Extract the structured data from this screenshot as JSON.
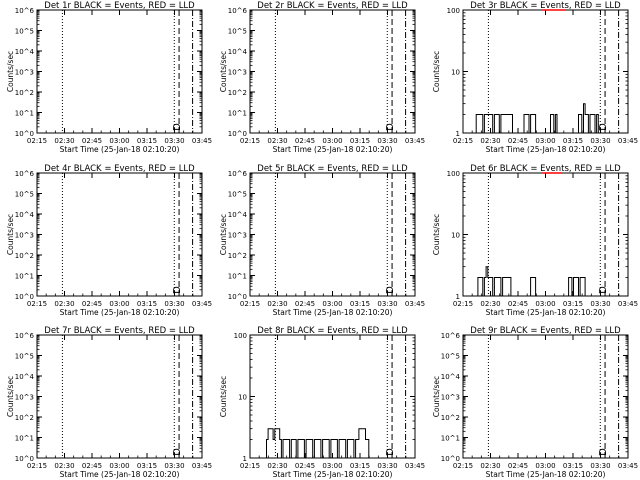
{
  "chart_data": [
    {
      "type": "line",
      "title": "Det 1r BLACK = Events, RED = LLD",
      "xlabel": "Start Time (25-Jan-18 02:10:20)",
      "ylabel": "Counts/sec",
      "xticks": [
        "02:15",
        "02:30",
        "02:45",
        "03:00",
        "03:15",
        "03:30",
        "03:45"
      ],
      "xlim": [
        0,
        100
      ],
      "scale": "log",
      "ylim": [
        1,
        1000000
      ],
      "yticks": [
        1,
        10,
        100,
        1000,
        10000,
        100000,
        1000000
      ],
      "ytick_labels": [
        "10^0",
        "10^1",
        "10^2",
        "10^3",
        "10^4",
        "10^5",
        "10^6"
      ],
      "vlines": [
        {
          "x": 15.4,
          "style": "dotted"
        },
        {
          "x": 83.2,
          "style": "dotted"
        },
        {
          "x": 86.1,
          "style": "dashed"
        },
        {
          "x": 94.3,
          "style": "dashdot"
        }
      ],
      "series": [
        {
          "color": "#000000",
          "values": []
        },
        {
          "color": "#ff0000",
          "values": []
        }
      ],
      "annotation": "D",
      "annotation_x": 86.1
    },
    {
      "type": "line",
      "title": "Det 2r BLACK = Events, RED = LLD",
      "xlabel": "Start Time (25-Jan-18 02:10:20)",
      "ylabel": "Counts/sec",
      "xticks": [
        "02:15",
        "02:30",
        "02:45",
        "03:00",
        "03:15",
        "03:30",
        "03:45"
      ],
      "xlim": [
        0,
        100
      ],
      "scale": "log",
      "ylim": [
        1,
        1000000
      ],
      "yticks": [
        1,
        10,
        100,
        1000,
        10000,
        100000,
        1000000
      ],
      "ytick_labels": [
        "10^0",
        "10^1",
        "10^2",
        "10^3",
        "10^4",
        "10^5",
        "10^6"
      ],
      "vlines": [
        {
          "x": 15.4,
          "style": "dotted"
        },
        {
          "x": 83.2,
          "style": "dotted"
        },
        {
          "x": 86.1,
          "style": "dashed"
        },
        {
          "x": 94.3,
          "style": "dashdot"
        }
      ],
      "series": [
        {
          "color": "#000000",
          "values": []
        },
        {
          "color": "#ff0000",
          "values": []
        }
      ],
      "annotation": "D",
      "annotation_x": 86.1
    },
    {
      "type": "line",
      "title": "Det 3r BLACK = Events, RED = LLD",
      "xlabel": "Start Time (25-Jan-18 02:10:20)",
      "ylabel": "Counts/sec",
      "xticks": [
        "02:15",
        "02:30",
        "02:45",
        "03:00",
        "03:15",
        "03:30",
        "03:45"
      ],
      "xlim": [
        0,
        100
      ],
      "scale": "log",
      "ylim": [
        1,
        100
      ],
      "yticks": [
        1,
        10,
        100
      ],
      "ytick_labels": [
        "1",
        "10",
        "100"
      ],
      "vlines": [
        {
          "x": 15.4,
          "style": "dotted"
        },
        {
          "x": 83.2,
          "style": "dotted"
        },
        {
          "x": 86.1,
          "style": "dashed"
        },
        {
          "x": 94.3,
          "style": "dashdot"
        }
      ],
      "series": [
        {
          "color": "#000000",
          "values": [
            [
              8,
              1
            ],
            [
              8,
              2
            ],
            [
              12,
              2
            ],
            [
              12,
              1
            ],
            [
              13,
              1
            ],
            [
              13,
              2
            ],
            [
              18,
              2
            ],
            [
              18,
              1
            ],
            [
              19,
              1
            ],
            [
              19,
              2
            ],
            [
              22,
              2
            ],
            [
              22,
              1
            ],
            [
              23,
              1
            ],
            [
              23,
              2
            ],
            [
              30,
              2
            ],
            [
              30,
              1
            ],
            [
              37,
              1
            ],
            [
              37,
              2
            ],
            [
              40,
              2
            ],
            [
              40,
              1
            ],
            [
              41,
              1
            ],
            [
              41,
              2
            ],
            [
              44,
              2
            ],
            [
              44,
              1
            ],
            [
              53,
              1
            ],
            [
              53,
              2
            ],
            [
              55,
              2
            ],
            [
              55,
              1
            ],
            [
              56,
              1
            ],
            [
              56,
              2
            ],
            [
              57,
              2
            ],
            [
              57,
              1
            ],
            [
              70,
              1
            ],
            [
              70,
              2
            ],
            [
              72,
              2
            ],
            [
              72,
              1
            ],
            [
              73,
              1
            ],
            [
              73,
              3
            ],
            [
              74,
              3
            ],
            [
              74,
              2
            ],
            [
              76,
              2
            ],
            [
              76,
              1
            ],
            [
              77,
              1
            ],
            [
              77,
              2
            ],
            [
              80,
              2
            ],
            [
              80,
              1
            ],
            [
              81,
              1
            ],
            [
              81,
              2
            ],
            [
              82,
              2
            ],
            [
              82,
              1
            ]
          ]
        },
        {
          "color": "#ff0000",
          "values": [
            [
              48,
              100
            ],
            [
              62,
              100
            ]
          ]
        }
      ],
      "annotation": "D",
      "annotation_x": 86.1
    },
    {
      "type": "line",
      "title": "Det 4r BLACK = Events, RED = LLD",
      "xlabel": "Start Time (25-Jan-18 02:10:20)",
      "ylabel": "Counts/sec",
      "xticks": [
        "02:15",
        "02:30",
        "02:45",
        "03:00",
        "03:15",
        "03:30",
        "03:45"
      ],
      "xlim": [
        0,
        100
      ],
      "scale": "log",
      "ylim": [
        1,
        1000000
      ],
      "yticks": [
        1,
        10,
        100,
        1000,
        10000,
        100000,
        1000000
      ],
      "ytick_labels": [
        "10^0",
        "10^1",
        "10^2",
        "10^3",
        "10^4",
        "10^5",
        "10^6"
      ],
      "vlines": [
        {
          "x": 15.4,
          "style": "dotted"
        },
        {
          "x": 83.2,
          "style": "dotted"
        },
        {
          "x": 86.1,
          "style": "dashed"
        },
        {
          "x": 94.3,
          "style": "dashdot"
        }
      ],
      "series": [
        {
          "color": "#000000",
          "values": []
        },
        {
          "color": "#ff0000",
          "values": []
        }
      ],
      "annotation": "D",
      "annotation_x": 86.1
    },
    {
      "type": "line",
      "title": "Det 5r BLACK = Events, RED = LLD",
      "xlabel": "Start Time (25-Jan-18 02:10:20)",
      "ylabel": "Counts/sec",
      "xticks": [
        "02:15",
        "02:30",
        "02:45",
        "03:00",
        "03:15",
        "03:30",
        "03:45"
      ],
      "xlim": [
        0,
        100
      ],
      "scale": "log",
      "ylim": [
        1,
        1000000
      ],
      "yticks": [
        1,
        10,
        100,
        1000,
        10000,
        100000,
        1000000
      ],
      "ytick_labels": [
        "10^0",
        "10^1",
        "10^2",
        "10^3",
        "10^4",
        "10^5",
        "10^6"
      ],
      "vlines": [
        {
          "x": 15.4,
          "style": "dotted"
        },
        {
          "x": 83.2,
          "style": "dotted"
        },
        {
          "x": 86.1,
          "style": "dashed"
        },
        {
          "x": 94.3,
          "style": "dashdot"
        }
      ],
      "series": [
        {
          "color": "#000000",
          "values": []
        },
        {
          "color": "#ff0000",
          "values": []
        }
      ],
      "annotation": "D",
      "annotation_x": 86.1
    },
    {
      "type": "line",
      "title": "Det 6r BLACK = Events, RED = LLD",
      "xlabel": "Start Time (25-Jan-18 02:10:20)",
      "ylabel": "Counts/sec",
      "xticks": [
        "02:15",
        "02:30",
        "02:45",
        "03:00",
        "03:15",
        "03:30",
        "03:45"
      ],
      "xlim": [
        0,
        100
      ],
      "scale": "log",
      "ylim": [
        1,
        100
      ],
      "yticks": [
        1,
        10,
        100
      ],
      "ytick_labels": [
        "1",
        "10",
        "100"
      ],
      "vlines": [
        {
          "x": 15.4,
          "style": "dotted"
        },
        {
          "x": 83.2,
          "style": "dotted"
        },
        {
          "x": 86.1,
          "style": "dashed"
        },
        {
          "x": 94.3,
          "style": "dashdot"
        }
      ],
      "series": [
        {
          "color": "#000000",
          "values": [
            [
              9,
              1
            ],
            [
              9,
              2
            ],
            [
              12,
              2
            ],
            [
              12,
              1
            ],
            [
              13,
              1
            ],
            [
              13,
              2
            ],
            [
              14,
              2
            ],
            [
              14,
              3
            ],
            [
              15,
              3
            ],
            [
              15,
              2
            ],
            [
              18,
              2
            ],
            [
              18,
              1
            ],
            [
              19,
              1
            ],
            [
              19,
              2
            ],
            [
              23,
              2
            ],
            [
              23,
              1
            ],
            [
              24,
              1
            ],
            [
              24,
              2
            ],
            [
              29,
              2
            ],
            [
              29,
              1
            ],
            [
              41,
              1
            ],
            [
              41,
              2
            ],
            [
              44,
              2
            ],
            [
              44,
              1
            ],
            [
              64,
              1
            ],
            [
              64,
              2
            ],
            [
              66,
              2
            ],
            [
              66,
              1
            ],
            [
              67,
              1
            ],
            [
              67,
              2
            ],
            [
              70,
              2
            ],
            [
              70,
              1
            ],
            [
              71,
              1
            ],
            [
              71,
              2
            ],
            [
              74,
              2
            ],
            [
              74,
              1
            ]
          ]
        },
        {
          "color": "#ff0000",
          "values": [
            [
              48,
              100
            ],
            [
              60,
              100
            ]
          ]
        }
      ],
      "annotation": "D",
      "annotation_x": 86.1
    },
    {
      "type": "line",
      "title": "Det 7r BLACK = Events, RED = LLD",
      "xlabel": "Start Time (25-Jan-18 02:10:20)",
      "ylabel": "Counts/sec",
      "xticks": [
        "02:15",
        "02:30",
        "02:45",
        "03:00",
        "03:15",
        "03:30",
        "03:45"
      ],
      "xlim": [
        0,
        100
      ],
      "scale": "log",
      "ylim": [
        1,
        1000000
      ],
      "yticks": [
        1,
        10,
        100,
        1000,
        10000,
        100000,
        1000000
      ],
      "ytick_labels": [
        "10^0",
        "10^1",
        "10^2",
        "10^3",
        "10^4",
        "10^5",
        "10^6"
      ],
      "vlines": [
        {
          "x": 15.4,
          "style": "dotted"
        },
        {
          "x": 83.2,
          "style": "dotted"
        },
        {
          "x": 86.1,
          "style": "dashed"
        },
        {
          "x": 94.3,
          "style": "dashdot"
        }
      ],
      "series": [
        {
          "color": "#000000",
          "values": []
        },
        {
          "color": "#ff0000",
          "values": []
        }
      ],
      "annotation": "D",
      "annotation_x": 86.1
    },
    {
      "type": "line",
      "title": "Det 8r BLACK = Events, RED = LLD",
      "xlabel": "Start Time (25-Jan-18 02:10:20)",
      "ylabel": "Counts/sec",
      "xticks": [
        "02:15",
        "02:30",
        "02:45",
        "03:00",
        "03:15",
        "03:30",
        "03:45"
      ],
      "xlim": [
        0,
        100
      ],
      "scale": "log",
      "ylim": [
        1,
        100
      ],
      "yticks": [
        1,
        10,
        100
      ],
      "ytick_labels": [
        "1",
        "10",
        "100"
      ],
      "vlines": [
        {
          "x": 15.4,
          "style": "dotted"
        },
        {
          "x": 83.2,
          "style": "dotted"
        },
        {
          "x": 86.1,
          "style": "dashed"
        },
        {
          "x": 94.3,
          "style": "dashdot"
        }
      ],
      "series": [
        {
          "color": "#000000",
          "values": [
            [
              10,
              1
            ],
            [
              10,
              2
            ],
            [
              11,
              2
            ],
            [
              11,
              3
            ],
            [
              14,
              3
            ],
            [
              14,
              2
            ],
            [
              15,
              2
            ],
            [
              15,
              3
            ],
            [
              18,
              3
            ],
            [
              18,
              2
            ],
            [
              19,
              2
            ],
            [
              19,
              1
            ],
            [
              20,
              1
            ],
            [
              20,
              2
            ],
            [
              24,
              2
            ],
            [
              24,
              1
            ],
            [
              25,
              1
            ],
            [
              25,
              2
            ],
            [
              28,
              2
            ],
            [
              28,
              1
            ],
            [
              29,
              1
            ],
            [
              29,
              2
            ],
            [
              33,
              2
            ],
            [
              33,
              1
            ],
            [
              34,
              1
            ],
            [
              34,
              2
            ],
            [
              38,
              2
            ],
            [
              38,
              1
            ],
            [
              39,
              1
            ],
            [
              39,
              2
            ],
            [
              43,
              2
            ],
            [
              43,
              1
            ],
            [
              44,
              1
            ],
            [
              44,
              2
            ],
            [
              48,
              2
            ],
            [
              48,
              1
            ],
            [
              49,
              1
            ],
            [
              49,
              2
            ],
            [
              53,
              2
            ],
            [
              53,
              1
            ],
            [
              54,
              1
            ],
            [
              54,
              2
            ],
            [
              58,
              2
            ],
            [
              58,
              1
            ],
            [
              59,
              1
            ],
            [
              59,
              2
            ],
            [
              63,
              2
            ],
            [
              63,
              1
            ],
            [
              64,
              1
            ],
            [
              64,
              2
            ],
            [
              66,
              2
            ],
            [
              66,
              3
            ],
            [
              70,
              3
            ],
            [
              70,
              2
            ],
            [
              72,
              2
            ],
            [
              72,
              1
            ]
          ]
        },
        {
          "color": "#ff0000",
          "values": []
        }
      ],
      "annotation": "D",
      "annotation_x": 86.1
    },
    {
      "type": "line",
      "title": "Det 9r BLACK = Events, RED = LLD",
      "xlabel": "Start Time (25-Jan-18 02:10:20)",
      "ylabel": "Counts/sec",
      "xticks": [
        "02:15",
        "02:30",
        "02:45",
        "03:00",
        "03:15",
        "03:30",
        "03:45"
      ],
      "xlim": [
        0,
        100
      ],
      "scale": "log",
      "ylim": [
        1,
        1000000
      ],
      "yticks": [
        1,
        10,
        100,
        1000,
        10000,
        100000,
        1000000
      ],
      "ytick_labels": [
        "10^0",
        "10^1",
        "10^2",
        "10^3",
        "10^4",
        "10^5",
        "10^6"
      ],
      "vlines": [
        {
          "x": 15.4,
          "style": "dotted"
        },
        {
          "x": 83.2,
          "style": "dotted"
        },
        {
          "x": 86.1,
          "style": "dashed"
        },
        {
          "x": 94.3,
          "style": "dashdot"
        }
      ],
      "series": [
        {
          "color": "#000000",
          "values": []
        },
        {
          "color": "#ff0000",
          "values": []
        }
      ],
      "annotation": "D",
      "annotation_x": 86.1
    }
  ]
}
